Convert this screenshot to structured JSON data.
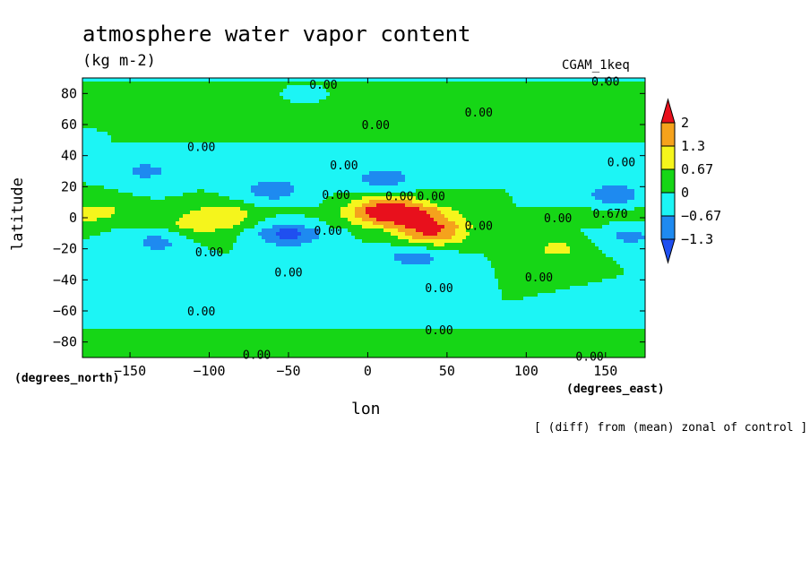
{
  "chart_data": {
    "type": "heatmap",
    "title": "atmosphere water vapor content",
    "units": "(kg m-2)",
    "run_label": "CGAM_1keq",
    "xlabel": "lon",
    "ylabel": "latitude",
    "y_unit_label": "(degrees_north)",
    "x_unit_label": "(degrees_east)",
    "note": "[ (diff) from (mean) zonal of control ]",
    "xlim": [
      -180,
      175
    ],
    "ylim": [
      -90,
      90
    ],
    "x_ticks": [
      -150,
      -100,
      -50,
      0,
      50,
      100,
      150
    ],
    "y_ticks": [
      80,
      60,
      40,
      20,
      0,
      -20,
      -40,
      -60,
      -80
    ],
    "x_tick_labels": [
      "−150",
      "−100",
      "−50",
      "0",
      "50",
      "100",
      "150"
    ],
    "y_tick_labels": [
      "80",
      "60",
      "40",
      "20",
      "0",
      "−20",
      "−40",
      "−60",
      "−80"
    ],
    "colorbar": {
      "labels": [
        "2",
        "1.3",
        "0.67",
        "0",
        "−0.67",
        "−1.3"
      ],
      "colors": [
        "#e8101c",
        "#f5a21c",
        "#f5f51c",
        "#16d616",
        "#1cf5f5",
        "#1e8af0",
        "#1f4ff0"
      ]
    },
    "contour_labels": [
      "0.00",
      "0.00",
      "0.00",
      "0.00",
      "0.00",
      "0.00",
      "0.00",
      "0.00",
      "0.00",
      "0.00",
      "0.00",
      "0.00",
      "0.00",
      "0.00",
      "0.00",
      "0.670",
      "0.00",
      "0.00",
      "0.00",
      "0.00",
      "0.00",
      "0.00"
    ],
    "features": [
      {
        "lon": 10,
        "lat": 5,
        "value": 2.2
      },
      {
        "lon": 40,
        "lat": -10,
        "value": 2.0
      },
      {
        "lon": 30,
        "lat": 2,
        "value": 1.2
      },
      {
        "lon": -50,
        "lat": -10,
        "value": -1.5
      },
      {
        "lon": -130,
        "lat": -15,
        "value": -1.0
      },
      {
        "lon": 10,
        "lat": 25,
        "value": -1.0
      },
      {
        "lon": 30,
        "lat": -25,
        "value": -1.0
      },
      {
        "lon": -60,
        "lat": 18,
        "value": -1.0
      },
      {
        "lon": 155,
        "lat": 15,
        "value": -1.0
      },
      {
        "lon": 165,
        "lat": -12,
        "value": -0.8
      },
      {
        "lon": -140,
        "lat": 30,
        "value": -0.8
      },
      {
        "lon": 120,
        "lat": -20,
        "value": 0.8
      },
      {
        "lon": -175,
        "lat": 5,
        "value": 0.7
      },
      {
        "lon": -110,
        "lat": -8,
        "value": 0.8
      },
      {
        "lon": -90,
        "lat": 2,
        "value": 0.7
      },
      {
        "lon": -180,
        "lat": 50,
        "value": -0.5
      },
      {
        "lon": 175,
        "lat": 40,
        "value": -0.5
      },
      {
        "lon": -40,
        "lat": 80,
        "value": -0.4
      },
      {
        "lon": -180,
        "lat": -65,
        "value": -0.5
      },
      {
        "lon": 175,
        "lat": -60,
        "value": -0.5
      },
      {
        "lon": 50,
        "lat": 40,
        "value": -0.4
      },
      {
        "lon": -30,
        "lat": -55,
        "value": -0.4
      }
    ]
  }
}
